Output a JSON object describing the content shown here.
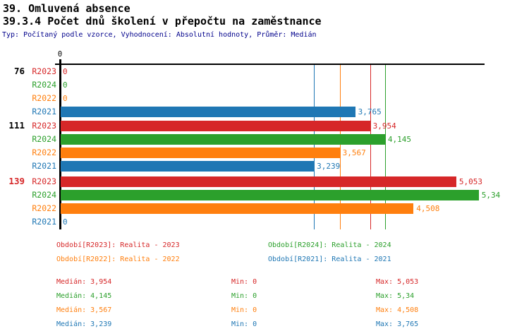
{
  "header": {
    "title_line1": "39. Omluvená absence",
    "title_line2": "39.3.4 Počet dnů školení v přepočtu na zaměstnance",
    "subtitle": "Typ: Počítaný podle vzorce, Vyhodnocení: Absolutní hodnoty, Průměr: Medián",
    "subtitle_color": "#00008b"
  },
  "chart_data": {
    "type": "bar",
    "orientation": "horizontal",
    "title": "39.3.4 Počet dnů školení v přepočtu na zaměstnance",
    "xlabel": "",
    "ylabel": "",
    "xlim": [
      0,
      5.41
    ],
    "axis_origin_label": "0",
    "grid": "median_reference_lines_only",
    "legend_position": "bottom",
    "series": [
      {
        "id": "R2023",
        "label": "R2023",
        "color": "#d62728",
        "legend": "Období[R2023]: Realita - 2023",
        "median": 3.954,
        "median_display": "3,954",
        "min": 0,
        "min_display": "0",
        "max": 5.053,
        "max_display": "5,053"
      },
      {
        "id": "R2024",
        "label": "R2024",
        "color": "#2ca02c",
        "legend": "Období[R2024]: Realita - 2024",
        "median": 4.145,
        "median_display": "4,145",
        "min": 0,
        "min_display": "0",
        "max": 5.34,
        "max_display": "5,34"
      },
      {
        "id": "R2022",
        "label": "R2022",
        "color": "#ff7f0e",
        "legend": "Období[R2022]: Realita - 2022",
        "median": 3.567,
        "median_display": "3,567",
        "min": 0,
        "min_display": "0",
        "max": 4.508,
        "max_display": "4,508"
      },
      {
        "id": "R2021",
        "label": "R2021",
        "color": "#1f77b4",
        "legend": "Období[R2021]: Realita - 2021",
        "median": 3.239,
        "median_display": "3,239",
        "min": 0,
        "min_display": "0",
        "max": 3.765,
        "max_display": "3,765"
      }
    ],
    "groups": [
      {
        "label": "76",
        "label_color": "#000000",
        "values": [
          {
            "series": "R2023",
            "value": 0,
            "display": "0"
          },
          {
            "series": "R2024",
            "value": 0,
            "display": "0"
          },
          {
            "series": "R2022",
            "value": 0,
            "display": "0"
          },
          {
            "series": "R2021",
            "value": 3.765,
            "display": "3,765"
          }
        ]
      },
      {
        "label": "111",
        "label_color": "#000000",
        "values": [
          {
            "series": "R2023",
            "value": 3.954,
            "display": "3,954"
          },
          {
            "series": "R2024",
            "value": 4.145,
            "display": "4,145"
          },
          {
            "series": "R2022",
            "value": 3.567,
            "display": "3,567"
          },
          {
            "series": "R2021",
            "value": 3.239,
            "display": "3,239"
          }
        ]
      },
      {
        "label": "139",
        "label_color": "#d62728",
        "values": [
          {
            "series": "R2023",
            "value": 5.053,
            "display": "5,053"
          },
          {
            "series": "R2024",
            "value": 5.34,
            "display": "5,34"
          },
          {
            "series": "R2022",
            "value": 4.508,
            "display": "4,508"
          },
          {
            "series": "R2021",
            "value": 0,
            "display": "0"
          }
        ]
      }
    ],
    "median_lines": [
      {
        "series": "R2021",
        "value": 3.239,
        "color": "#1f77b4"
      },
      {
        "series": "R2022",
        "value": 3.567,
        "color": "#ff7f0e"
      },
      {
        "series": "R2023",
        "value": 3.954,
        "color": "#d62728"
      },
      {
        "series": "R2024",
        "value": 4.145,
        "color": "#2ca02c"
      }
    ]
  },
  "stats_labels": {
    "median": "Medián:",
    "min": "Min:",
    "max": "Max:"
  }
}
